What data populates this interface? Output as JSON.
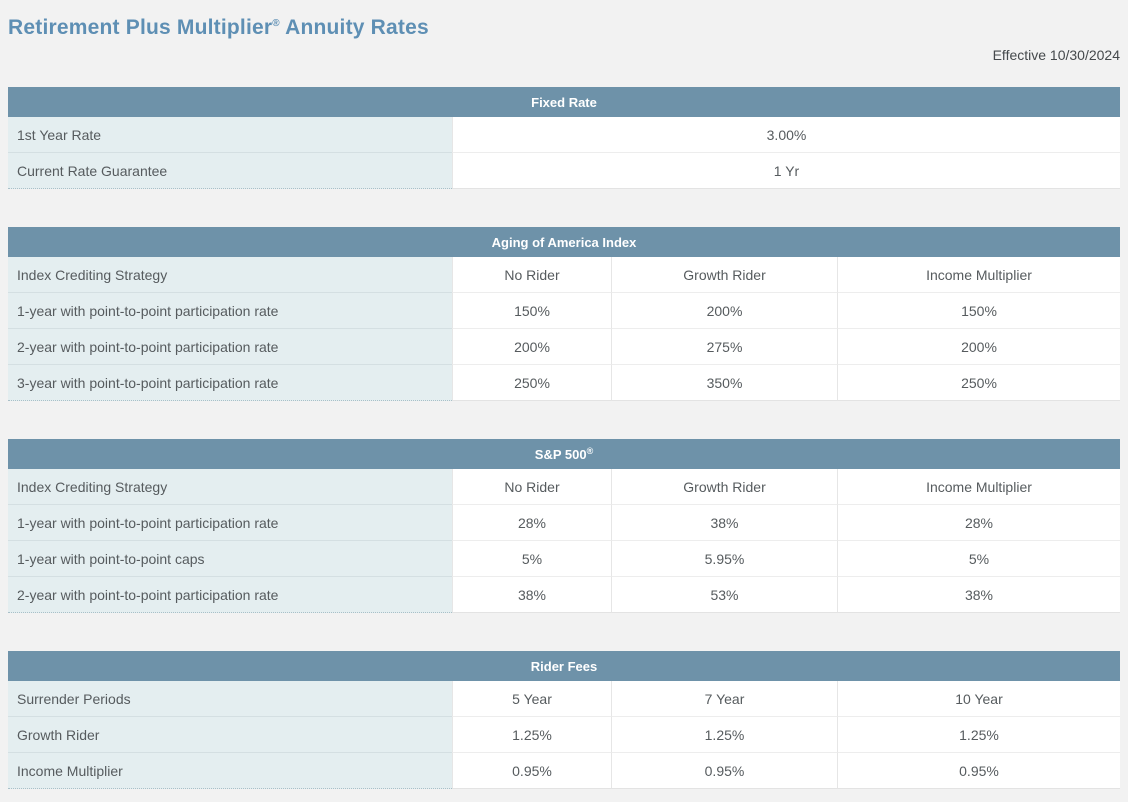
{
  "header": {
    "title_main": "Retirement Plus Multiplier",
    "registered": "®",
    "title_suffix": " Annuity Rates",
    "effective_date": "Effective 10/30/2024"
  },
  "colors": {
    "title_text": "#5e8fb4",
    "table_header_bg": "#6e92a9",
    "label_cell_bg": "#e4eef0",
    "page_bg": "#f2f2f2",
    "body_text": "#565b5e"
  },
  "tables": [
    {
      "title": "Fixed Rate",
      "rows": [
        {
          "label": "1st Year Rate",
          "values": [
            "3.00%"
          ]
        },
        {
          "label": "Current Rate Guarantee",
          "values": [
            "1 Yr"
          ]
        }
      ]
    },
    {
      "title": "Aging of America Index",
      "header_row": {
        "label": "Index Crediting Strategy",
        "values": [
          "No Rider",
          "Growth Rider",
          "Income Multiplier"
        ]
      },
      "rows": [
        {
          "label": "1-year with point-to-point participation rate",
          "values": [
            "150%",
            "200%",
            "150%"
          ]
        },
        {
          "label": "2-year with point-to-point participation rate",
          "values": [
            "200%",
            "275%",
            "200%"
          ]
        },
        {
          "label": "3-year with point-to-point participation rate",
          "values": [
            "250%",
            "350%",
            "250%"
          ]
        }
      ]
    },
    {
      "title": "S&P 500",
      "registered": "®",
      "header_row": {
        "label": "Index Crediting Strategy",
        "values": [
          "No Rider",
          "Growth Rider",
          "Income Multiplier"
        ]
      },
      "rows": [
        {
          "label": "1-year with point-to-point participation rate",
          "values": [
            "28%",
            "38%",
            "28%"
          ]
        },
        {
          "label": "1-year with point-to-point caps",
          "values": [
            "5%",
            "5.95%",
            "5%"
          ]
        },
        {
          "label": "2-year with point-to-point participation rate",
          "values": [
            "38%",
            "53%",
            "38%"
          ]
        }
      ]
    },
    {
      "title": "Rider Fees",
      "header_row": {
        "label": "Surrender Periods",
        "values": [
          "5 Year",
          "7 Year",
          "10 Year"
        ]
      },
      "rows": [
        {
          "label": "Growth Rider",
          "values": [
            "1.25%",
            "1.25%",
            "1.25%"
          ]
        },
        {
          "label": "Income Multiplier",
          "values": [
            "0.95%",
            "0.95%",
            "0.95%"
          ]
        }
      ]
    }
  ]
}
